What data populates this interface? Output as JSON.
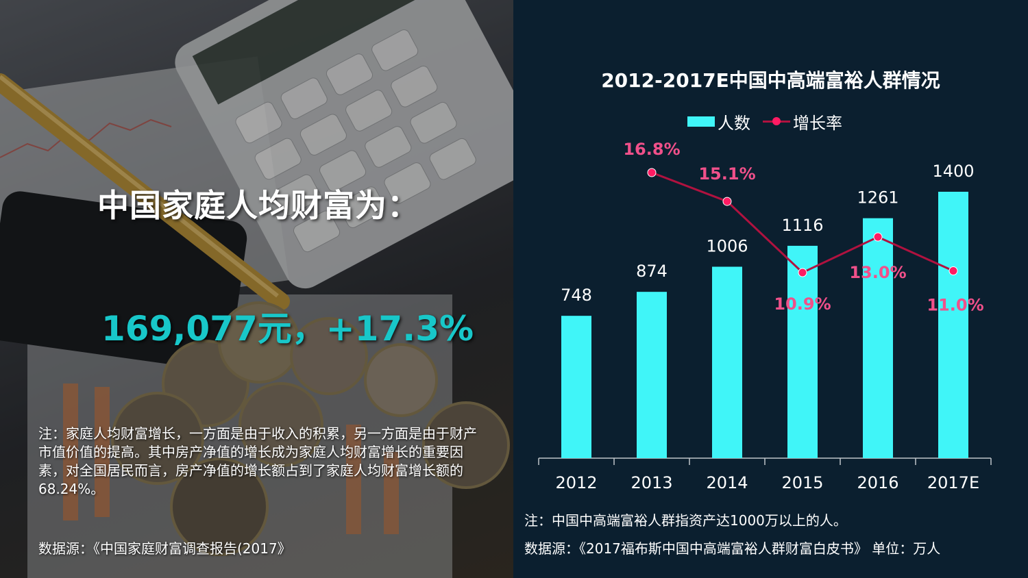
{
  "left": {
    "headline": "中国家庭人均财富为：",
    "stat": "169,077元，+17.3%",
    "note": "注：家庭人均财富增长，一方面是由于收入的积累，另一方面是由于财产市值价值的提高。其中房产净值的增长成为家庭人均财富增长的重要因素，对全国居民而言，房产净值的增长额占到了家庭人均财富增长额的68.24%。",
    "source": "数据源：《中国家庭财富调查报告(2017》"
  },
  "right": {
    "note": "注：中国中高端富裕人群指资产达1000万以上的人。",
    "source": "数据源：《2017福布斯中国中高端富裕人群财富白皮书》   单位：万人"
  },
  "colors": {
    "bar": "#40f5f8",
    "line": "#b0123f",
    "marker": "#ff1b63",
    "rate_label": "#f0508a",
    "panel_bg": "#0b1f2f"
  },
  "chart_data": {
    "type": "bar",
    "title": "2012-2017E中国中高端富裕人群情况",
    "legend_position": "top-center",
    "grid": false,
    "categories": [
      "2012",
      "2013",
      "2014",
      "2015",
      "2016",
      "2017E"
    ],
    "series": [
      {
        "name": "人数",
        "type": "bar",
        "values": [
          748,
          874,
          1006,
          1116,
          1261,
          1400
        ],
        "labels": [
          "748",
          "874",
          "1006",
          "1116",
          "1261",
          "1400"
        ]
      },
      {
        "name": "增长率",
        "type": "line",
        "values": [
          null,
          16.8,
          15.1,
          10.9,
          13.0,
          11.0
        ],
        "labels": [
          "",
          "16.8%",
          "15.1%",
          "10.9%",
          "13.0%",
          "11.0%"
        ]
      }
    ],
    "ylim_bar": [
      0,
      1700
    ],
    "ylim_line": [
      -7.0,
      20.0
    ]
  }
}
